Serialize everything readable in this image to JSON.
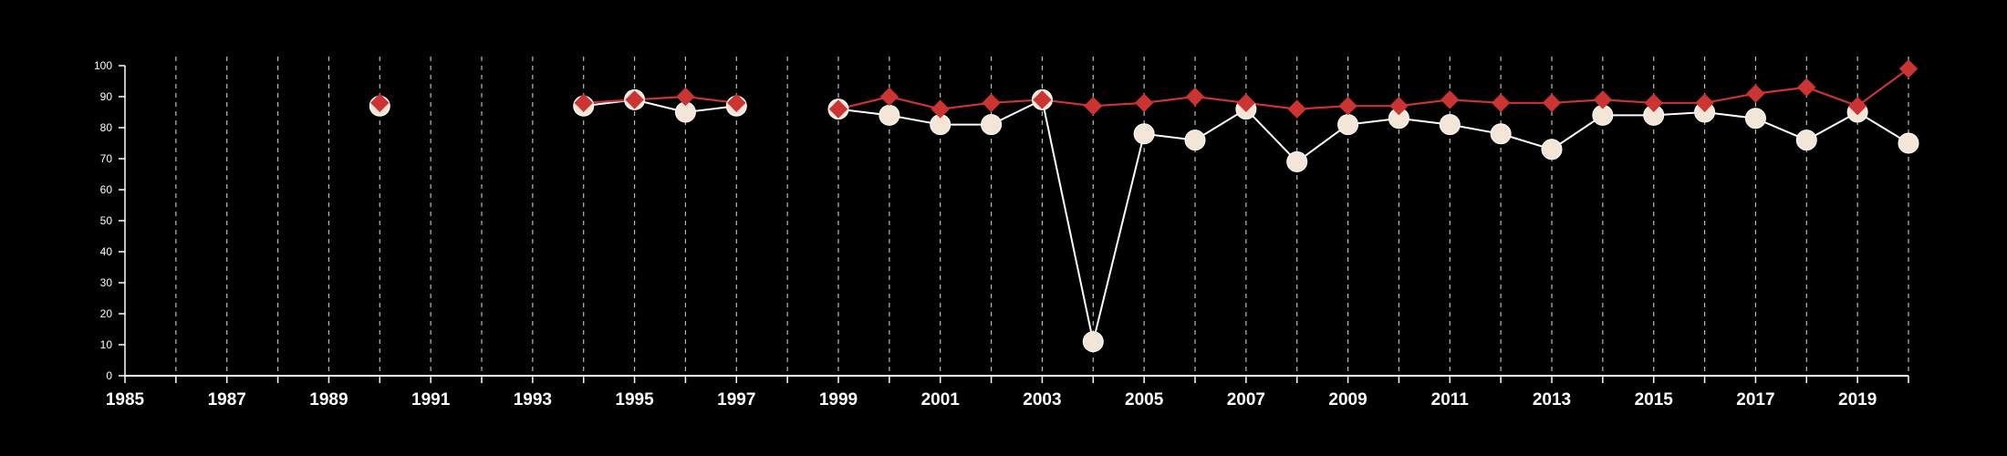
{
  "chart_data": {
    "type": "line",
    "title": "",
    "xlabel": "",
    "ylabel": "",
    "xlim": [
      1985,
      2020
    ],
    "ylim": [
      0,
      100
    ],
    "x_ticks": [
      1985,
      1986,
      1987,
      1988,
      1989,
      1990,
      1991,
      1992,
      1993,
      1994,
      1995,
      1996,
      1997,
      1998,
      1999,
      2000,
      2001,
      2002,
      2003,
      2004,
      2005,
      2006,
      2007,
      2008,
      2009,
      2010,
      2011,
      2012,
      2013,
      2014,
      2015,
      2016,
      2017,
      2018,
      2019,
      2020
    ],
    "x_tick_labels": [
      "1985",
      "1987",
      "1989",
      "1991",
      "1993",
      "1995",
      "1997",
      "1999",
      "2001",
      "2003",
      "2005",
      "2007",
      "2009",
      "2011",
      "2013",
      "2015",
      "2017",
      "2019"
    ],
    "y_ticks": [
      0,
      10,
      20,
      30,
      40,
      50,
      60,
      70,
      80,
      90,
      100
    ],
    "y_tick_labels": [
      "0",
      "10",
      "20",
      "30",
      "40",
      "50",
      "60",
      "70",
      "80",
      "90",
      "100"
    ],
    "grid": "vertical-dashed",
    "legend": "none",
    "colors": {
      "background": "#000000",
      "axis": "#ffffff",
      "grid": "#bbbbbb",
      "series_white": "#f3e6d6",
      "series_white_line": "#ffffff",
      "series_red": "#cc3333"
    },
    "series": [
      {
        "marker": "circle",
        "color": "#f3e6d6",
        "points": [
          [
            1990,
            87
          ],
          [
            1994,
            87
          ],
          [
            1995,
            89
          ],
          [
            1996,
            85
          ],
          [
            1997,
            87
          ],
          [
            1999,
            86
          ],
          [
            2000,
            84
          ],
          [
            2001,
            81
          ],
          [
            2002,
            81
          ],
          [
            2003,
            89
          ],
          [
            2004,
            11
          ],
          [
            2005,
            78
          ],
          [
            2006,
            76
          ],
          [
            2007,
            86
          ],
          [
            2008,
            69
          ],
          [
            2009,
            81
          ],
          [
            2010,
            83
          ],
          [
            2011,
            81
          ],
          [
            2012,
            78
          ],
          [
            2013,
            73
          ],
          [
            2014,
            84
          ],
          [
            2015,
            84
          ],
          [
            2016,
            85
          ],
          [
            2017,
            83
          ],
          [
            2018,
            76
          ],
          [
            2019,
            85
          ],
          [
            2020,
            75
          ]
        ]
      },
      {
        "marker": "diamond",
        "color": "#cc3333",
        "points": [
          [
            1990,
            88
          ],
          [
            1994,
            88
          ],
          [
            1995,
            89
          ],
          [
            1996,
            90
          ],
          [
            1997,
            88
          ],
          [
            1999,
            86
          ],
          [
            2000,
            90
          ],
          [
            2001,
            86
          ],
          [
            2002,
            88
          ],
          [
            2003,
            89
          ],
          [
            2004,
            87
          ],
          [
            2005,
            88
          ],
          [
            2006,
            90
          ],
          [
            2007,
            88
          ],
          [
            2008,
            86
          ],
          [
            2009,
            87
          ],
          [
            2010,
            87
          ],
          [
            2011,
            89
          ],
          [
            2012,
            88
          ],
          [
            2013,
            88
          ],
          [
            2014,
            89
          ],
          [
            2015,
            88
          ],
          [
            2016,
            88
          ],
          [
            2017,
            91
          ],
          [
            2018,
            93
          ],
          [
            2019,
            87
          ],
          [
            2020,
            99
          ]
        ]
      }
    ]
  }
}
